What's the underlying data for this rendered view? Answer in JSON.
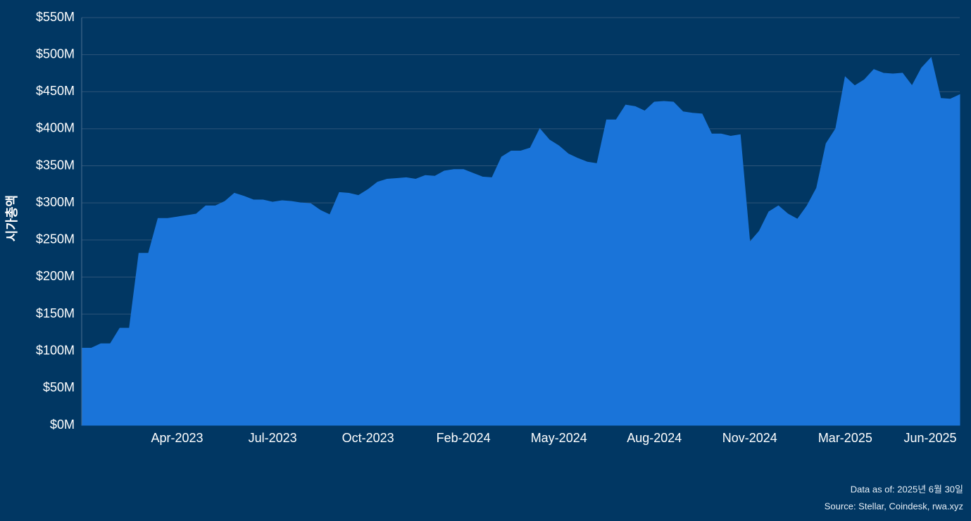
{
  "chart_data": {
    "type": "area",
    "y_label": "시가총액",
    "categories": [
      null,
      null,
      null,
      null,
      null,
      null,
      null,
      null,
      null,
      null,
      "Apr-2023",
      null,
      null,
      null,
      null,
      null,
      null,
      null,
      null,
      null,
      "Jul-2023",
      null,
      null,
      null,
      null,
      null,
      null,
      null,
      null,
      null,
      "Oct-2023",
      null,
      null,
      null,
      null,
      null,
      null,
      null,
      null,
      null,
      "Feb-2024",
      null,
      null,
      null,
      null,
      null,
      null,
      null,
      null,
      null,
      "May-2024",
      null,
      null,
      null,
      null,
      null,
      null,
      null,
      null,
      null,
      "Aug-2024",
      null,
      null,
      null,
      null,
      null,
      null,
      null,
      null,
      null,
      "Nov-2024",
      null,
      null,
      null,
      null,
      null,
      null,
      null,
      null,
      null,
      "Mar-2025",
      null,
      null,
      null,
      null,
      null,
      null,
      null,
      null,
      "Jun-2025",
      null,
      null,
      null
    ],
    "values": [
      104,
      104,
      110,
      110,
      131,
      131,
      232,
      232,
      279,
      279,
      281,
      283,
      285,
      296,
      296,
      302,
      313,
      309,
      304,
      304,
      301,
      303,
      302,
      300,
      299,
      290,
      284,
      314,
      313,
      310,
      318,
      328,
      332,
      333,
      334,
      332,
      337,
      336,
      343,
      345,
      345,
      340,
      335,
      334,
      362,
      370,
      370,
      374,
      400,
      385,
      377,
      366,
      360,
      355,
      353,
      412,
      412,
      432,
      430,
      424,
      436,
      437,
      436,
      423,
      421,
      420,
      393,
      393,
      390,
      392,
      247,
      262,
      288,
      296,
      285,
      278,
      296,
      320,
      380,
      400,
      470,
      458,
      466,
      480,
      475,
      474,
      475,
      458,
      482,
      496,
      441,
      440,
      446
    ],
    "color": "#1a74d9",
    "ylim": [
      0,
      550
    ],
    "yticks": [
      {
        "value": 0,
        "label": "$0M"
      },
      {
        "value": 50,
        "label": "$50M"
      },
      {
        "value": 100,
        "label": "$100M"
      },
      {
        "value": 150,
        "label": "$150M"
      },
      {
        "value": 200,
        "label": "$200M"
      },
      {
        "value": 250,
        "label": "$250M"
      },
      {
        "value": 300,
        "label": "$300M"
      },
      {
        "value": 350,
        "label": "$350M"
      },
      {
        "value": 400,
        "label": "$400M"
      },
      {
        "value": 450,
        "label": "$450M"
      },
      {
        "value": 500,
        "label": "$500M"
      },
      {
        "value": 550,
        "label": "$550M"
      }
    ],
    "grid": true,
    "notes": [
      "Data as of: 2025년 6월 30일",
      "Source: Stellar, Coindesk, rwa.xyz"
    ]
  }
}
